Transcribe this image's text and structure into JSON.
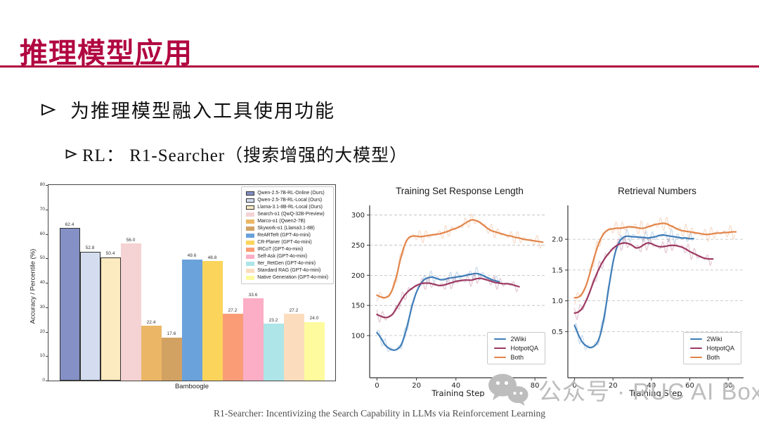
{
  "slide": {
    "title": "推理模型应用",
    "accent_color": "#b10741",
    "bullets": [
      "为推理模型融入工具使用功能",
      "RL：  R1-Searcher（搜索增强的大模型）"
    ],
    "watermark": "公众号 · RUC AI Box",
    "footer": "R1-Searcher: Incentivizing the Search Capability in LLMs via Reinforcement Learning"
  },
  "chart_data": [
    {
      "type": "bar",
      "title": "",
      "xlabel": "Bamboogle",
      "ylabel": "Accuracy / Percentile (%)",
      "ylim": [
        0,
        80
      ],
      "yticks": [
        0,
        10,
        20,
        30,
        40,
        50,
        60,
        70,
        80
      ],
      "categories": [
        "Bamboogle"
      ],
      "legend_position": "upper right",
      "grid": false,
      "series": [
        {
          "name": "Qwen-2.5-7B-RL-Online (Ours)",
          "value": 62.4,
          "color": "#8490c6",
          "edge": "#333333"
        },
        {
          "name": "Qwen-2.5-7B-RL-Local (Ours)",
          "value": 52.8,
          "color": "#d3ddef",
          "edge": "#333333"
        },
        {
          "name": "Llama-3.1-8B-RL-Local (Ours)",
          "value": 50.4,
          "color": "#fcebc0",
          "edge": "#333333"
        },
        {
          "name": "Search-o1 (QwQ-32B-Preview)",
          "value": 56.0,
          "color": "#f5d2d3"
        },
        {
          "name": "Marco-o1 (Qwen2-7B)",
          "value": 22.4,
          "color": "#ebb766"
        },
        {
          "name": "Skywork-o1 (Llama3.1-8B)",
          "value": 17.6,
          "color": "#d2a263"
        },
        {
          "name": "ReARTeR (GPT-4o-mini)",
          "value": 49.6,
          "color": "#6aa2db"
        },
        {
          "name": "CR-Planer (GPT-4o-mini)",
          "value": 48.8,
          "color": "#fbd45c"
        },
        {
          "name": "IRCoT (GPT-4o-mini)",
          "value": 27.2,
          "color": "#fa9d77"
        },
        {
          "name": "Self-Ask (GPT-4o-mini)",
          "value": 33.6,
          "color": "#fbaec5"
        },
        {
          "name": "Iter_RetGen (GPT-4o-mini)",
          "value": 23.2,
          "color": "#aee5e8"
        },
        {
          "name": "Standard RAG (GPT-4o-mini)",
          "value": 27.2,
          "color": "#fbddbe"
        },
        {
          "name": "Native Generation (GPT-4o-mini)",
          "value": 24.0,
          "color": "#fdfb9e"
        }
      ]
    },
    {
      "type": "line",
      "title": "Training Set Response Length",
      "xlabel": "Training Step",
      "xlim": [
        -3.7,
        86
      ],
      "ylim": [
        30,
        316
      ],
      "xticks": [
        0,
        20,
        40,
        60,
        80
      ],
      "yticks": [
        100,
        150,
        200,
        250,
        300
      ],
      "ytick_labels": [
        "100",
        "150",
        "200",
        "250",
        "300"
      ],
      "grid": "dashed-horizontal",
      "legend_position": "lower right",
      "noise": 11,
      "series": [
        {
          "name": "2Wiki",
          "color": "#3f7db8",
          "points": [
            [
              0,
              105
            ],
            [
              2,
              96
            ],
            [
              4,
              85
            ],
            [
              6,
              79
            ],
            [
              8,
              76
            ],
            [
              10,
              77
            ],
            [
              12,
              83
            ],
            [
              14,
              100
            ],
            [
              16,
              125
            ],
            [
              18,
              152
            ],
            [
              20,
              172
            ],
            [
              22,
              185
            ],
            [
              24,
              193
            ],
            [
              26,
              196
            ],
            [
              28,
              197
            ],
            [
              30,
              195
            ],
            [
              32,
              193
            ],
            [
              34,
              193
            ],
            [
              36,
              195
            ],
            [
              38,
              196
            ],
            [
              40,
              197
            ],
            [
              42,
              198
            ],
            [
              44,
              199
            ],
            [
              46,
              201
            ],
            [
              48,
              202
            ],
            [
              50,
              203
            ],
            [
              52,
              202
            ],
            [
              54,
              199
            ],
            [
              56,
              196
            ],
            [
              58,
              193
            ],
            [
              60,
              191
            ],
            [
              62,
              189
            ]
          ]
        },
        {
          "name": "HotpotQA",
          "color": "#9c3a62",
          "points": [
            [
              0,
              135
            ],
            [
              2,
              132
            ],
            [
              4,
              130
            ],
            [
              6,
              131
            ],
            [
              8,
              136
            ],
            [
              10,
              146
            ],
            [
              12,
              157
            ],
            [
              14,
              167
            ],
            [
              16,
              174
            ],
            [
              18,
              179
            ],
            [
              20,
              183
            ],
            [
              22,
              186
            ],
            [
              24,
              187
            ],
            [
              26,
              187
            ],
            [
              28,
              186
            ],
            [
              30,
              184
            ],
            [
              32,
              183
            ],
            [
              34,
              184
            ],
            [
              36,
              186
            ],
            [
              38,
              188
            ],
            [
              40,
              190
            ],
            [
              42,
              191
            ],
            [
              44,
              192
            ],
            [
              46,
              192
            ],
            [
              48,
              192
            ],
            [
              50,
              194
            ],
            [
              52,
              195
            ],
            [
              54,
              194
            ],
            [
              56,
              192
            ],
            [
              58,
              190
            ],
            [
              60,
              188
            ],
            [
              62,
              187
            ],
            [
              64,
              186
            ],
            [
              66,
              186
            ],
            [
              68,
              185
            ],
            [
              70,
              183
            ],
            [
              72,
              181
            ]
          ]
        },
        {
          "name": "Both",
          "color": "#e2854a",
          "points": [
            [
              0,
              167
            ],
            [
              2,
              164
            ],
            [
              4,
              163
            ],
            [
              6,
              166
            ],
            [
              8,
              178
            ],
            [
              10,
              200
            ],
            [
              12,
              228
            ],
            [
              14,
              250
            ],
            [
              16,
              262
            ],
            [
              18,
              265
            ],
            [
              20,
              265
            ],
            [
              22,
              264
            ],
            [
              24,
              265
            ],
            [
              26,
              266
            ],
            [
              28,
              267
            ],
            [
              30,
              268
            ],
            [
              32,
              269
            ],
            [
              34,
              271
            ],
            [
              36,
              273
            ],
            [
              38,
              276
            ],
            [
              40,
              278
            ],
            [
              42,
              281
            ],
            [
              44,
              285
            ],
            [
              46,
              289
            ],
            [
              48,
              292
            ],
            [
              50,
              291
            ],
            [
              52,
              288
            ],
            [
              54,
              283
            ],
            [
              56,
              278
            ],
            [
              58,
              274
            ],
            [
              60,
              272
            ],
            [
              62,
              270
            ],
            [
              64,
              268
            ],
            [
              66,
              266
            ],
            [
              68,
              265
            ],
            [
              70,
              263
            ],
            [
              72,
              262
            ],
            [
              74,
              260
            ],
            [
              76,
              259
            ],
            [
              78,
              258
            ],
            [
              80,
              257
            ],
            [
              82,
              256
            ],
            [
              84,
              255
            ]
          ]
        }
      ]
    },
    {
      "type": "line",
      "title": "Retrieval Numbers",
      "xlabel": "Training Step",
      "xlim": [
        -3.5,
        88
      ],
      "ylim": [
        -0.25,
        2.55
      ],
      "xticks": [
        0,
        20,
        40,
        60,
        80
      ],
      "yticks": [
        0.5,
        1.0,
        1.5,
        2.0
      ],
      "ytick_labels": [
        "0.5",
        "1.0",
        "1.5",
        "2.0"
      ],
      "grid": "dashed-horizontal",
      "legend_position": "lower right",
      "noise": 0.12,
      "series": [
        {
          "name": "2Wiki",
          "color": "#3f7db8",
          "points": [
            [
              0,
              0.6
            ],
            [
              2,
              0.45
            ],
            [
              4,
              0.33
            ],
            [
              6,
              0.27
            ],
            [
              8,
              0.24
            ],
            [
              10,
              0.26
            ],
            [
              12,
              0.33
            ],
            [
              14,
              0.52
            ],
            [
              16,
              0.85
            ],
            [
              18,
              1.25
            ],
            [
              20,
              1.62
            ],
            [
              22,
              1.87
            ],
            [
              24,
              1.99
            ],
            [
              26,
              2.04
            ],
            [
              28,
              2.05
            ],
            [
              30,
              2.04
            ],
            [
              32,
              2.04
            ],
            [
              34,
              2.03
            ],
            [
              36,
              2.03
            ],
            [
              38,
              2.02
            ],
            [
              40,
              2.03
            ],
            [
              42,
              2.04
            ],
            [
              44,
              2.06
            ],
            [
              46,
              2.07
            ],
            [
              48,
              2.06
            ],
            [
              50,
              2.05
            ],
            [
              52,
              2.04
            ],
            [
              54,
              2.03
            ],
            [
              56,
              2.02
            ],
            [
              58,
              2.02
            ],
            [
              60,
              2.01
            ],
            [
              62,
              2.01
            ]
          ]
        },
        {
          "name": "HotpotQA",
          "color": "#9c3a62",
          "points": [
            [
              0,
              0.8
            ],
            [
              2,
              0.82
            ],
            [
              4,
              0.88
            ],
            [
              6,
              1.0
            ],
            [
              8,
              1.15
            ],
            [
              10,
              1.32
            ],
            [
              12,
              1.47
            ],
            [
              14,
              1.6
            ],
            [
              16,
              1.7
            ],
            [
              18,
              1.78
            ],
            [
              20,
              1.85
            ],
            [
              22,
              1.9
            ],
            [
              24,
              1.93
            ],
            [
              26,
              1.94
            ],
            [
              28,
              1.93
            ],
            [
              30,
              1.9
            ],
            [
              32,
              1.86
            ],
            [
              34,
              1.87
            ],
            [
              36,
              1.91
            ],
            [
              38,
              1.94
            ],
            [
              40,
              1.93
            ],
            [
              42,
              1.9
            ],
            [
              44,
              1.88
            ],
            [
              46,
              1.88
            ],
            [
              48,
              1.89
            ],
            [
              50,
              1.9
            ],
            [
              52,
              1.9
            ],
            [
              54,
              1.89
            ],
            [
              56,
              1.87
            ],
            [
              58,
              1.84
            ],
            [
              60,
              1.8
            ],
            [
              62,
              1.77
            ],
            [
              64,
              1.74
            ],
            [
              66,
              1.71
            ],
            [
              68,
              1.69
            ],
            [
              70,
              1.68
            ],
            [
              72,
              1.68
            ]
          ]
        },
        {
          "name": "Both",
          "color": "#e2854a",
          "points": [
            [
              0,
              1.05
            ],
            [
              2,
              1.06
            ],
            [
              4,
              1.12
            ],
            [
              6,
              1.25
            ],
            [
              8,
              1.45
            ],
            [
              10,
              1.68
            ],
            [
              12,
              1.88
            ],
            [
              14,
              2.03
            ],
            [
              16,
              2.12
            ],
            [
              18,
              2.16
            ],
            [
              20,
              2.17
            ],
            [
              22,
              2.18
            ],
            [
              24,
              2.18
            ],
            [
              26,
              2.19
            ],
            [
              28,
              2.2
            ],
            [
              30,
              2.2
            ],
            [
              32,
              2.19
            ],
            [
              34,
              2.18
            ],
            [
              36,
              2.18
            ],
            [
              38,
              2.2
            ],
            [
              40,
              2.22
            ],
            [
              42,
              2.24
            ],
            [
              44,
              2.25
            ],
            [
              46,
              2.26
            ],
            [
              48,
              2.25
            ],
            [
              50,
              2.22
            ],
            [
              52,
              2.19
            ],
            [
              54,
              2.16
            ],
            [
              56,
              2.14
            ],
            [
              58,
              2.13
            ],
            [
              60,
              2.12
            ],
            [
              62,
              2.11
            ],
            [
              64,
              2.1
            ],
            [
              66,
              2.09
            ],
            [
              68,
              2.08
            ],
            [
              70,
              2.08
            ],
            [
              72,
              2.09
            ],
            [
              74,
              2.1
            ],
            [
              76,
              2.1
            ],
            [
              78,
              2.11
            ],
            [
              80,
              2.11
            ],
            [
              82,
              2.12
            ],
            [
              84,
              2.12
            ]
          ]
        }
      ]
    }
  ]
}
